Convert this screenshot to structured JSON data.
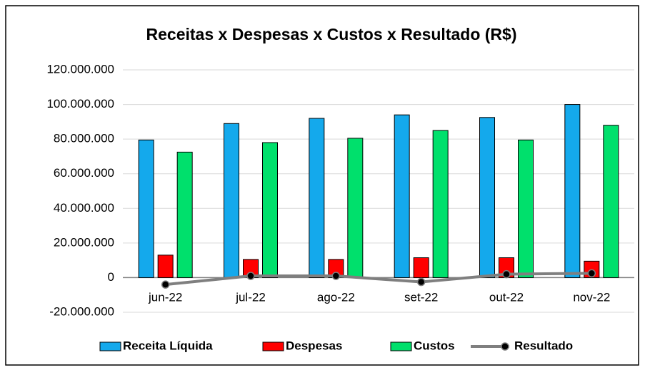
{
  "chart_data": {
    "type": "bar",
    "title": "Receitas x Despesas x Custos x Resultado (R$)",
    "categories": [
      "jun-22",
      "jul-22",
      "ago-22",
      "set-22",
      "out-22",
      "nov-22"
    ],
    "series": [
      {
        "name": "Receita Líquida",
        "type": "bar",
        "color": "#14a9ec",
        "values": [
          79500000,
          89000000,
          92000000,
          94000000,
          92500000,
          100000000
        ]
      },
      {
        "name": "Despesas",
        "type": "bar",
        "color": "#ff0000",
        "values": [
          13000000,
          10500000,
          10500000,
          11500000,
          11500000,
          9500000
        ]
      },
      {
        "name": "Custos",
        "type": "bar",
        "color": "#00e06c",
        "values": [
          72500000,
          78000000,
          80500000,
          85000000,
          79500000,
          88000000
        ]
      },
      {
        "name": "Resultado",
        "type": "line",
        "color": "#7f7f7f",
        "values": [
          -4000000,
          1000000,
          1000000,
          -2500000,
          2000000,
          2500000
        ]
      }
    ],
    "ylim": [
      -20000000,
      120000000
    ],
    "yticks": [
      {
        "value": -20000000,
        "label": "-20.000.000"
      },
      0,
      {
        "value": 20000000,
        "label": "20.000.000"
      },
      {
        "value": 40000000,
        "label": "40.000.000"
      },
      {
        "value": 60000000,
        "label": "60.000.000"
      },
      {
        "value": 80000000,
        "label": "80.000.000"
      },
      {
        "value": 100000000,
        "label": "100.000.000"
      },
      {
        "value": 120000000,
        "label": "120.000.000"
      }
    ],
    "grid": true,
    "legend": "bottom"
  }
}
